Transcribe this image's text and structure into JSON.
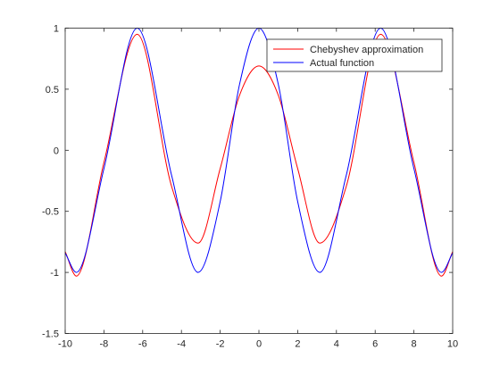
{
  "chart_data": {
    "type": "line",
    "title": "",
    "xlabel": "",
    "ylabel": "",
    "xlim": [
      -10,
      10
    ],
    "ylim": [
      -1.5,
      1
    ],
    "x_ticks": [
      "-10",
      "-8",
      "-6",
      "-4",
      "-2",
      "0",
      "2",
      "4",
      "6",
      "8",
      "10"
    ],
    "y_ticks": [
      "-1.5",
      "-1",
      "-0.5",
      "0",
      "0.5",
      "1"
    ],
    "grid": false,
    "legend_position": "top-right",
    "series": [
      {
        "name": "Chebyshev approximation",
        "color": "#ff0000",
        "x": [
          -10,
          -9.42,
          -8,
          -6.28,
          -4.5,
          -3.14,
          -2,
          -1,
          0,
          1,
          2,
          3.14,
          4.5,
          6.28,
          8,
          9.42,
          10
        ],
        "y": [
          -0.83,
          -1.03,
          -0.1,
          0.95,
          -0.3,
          -0.76,
          -0.15,
          0.45,
          0.69,
          0.45,
          -0.15,
          -0.76,
          -0.3,
          0.95,
          -0.1,
          -1.03,
          -0.83
        ]
      },
      {
        "name": "Actual function",
        "color": "#0000ff",
        "x": [
          -10,
          -9.42,
          -8,
          -6.28,
          -4.5,
          -3.14,
          -2,
          -1,
          0,
          1,
          2,
          3.14,
          4.5,
          6.28,
          8,
          9.42,
          10
        ],
        "y": [
          -0.84,
          -1,
          -0.15,
          1,
          -0.21,
          -1,
          -0.42,
          0.54,
          1,
          0.54,
          -0.42,
          -1,
          -0.21,
          1,
          -0.15,
          -1,
          -0.84
        ]
      }
    ]
  }
}
